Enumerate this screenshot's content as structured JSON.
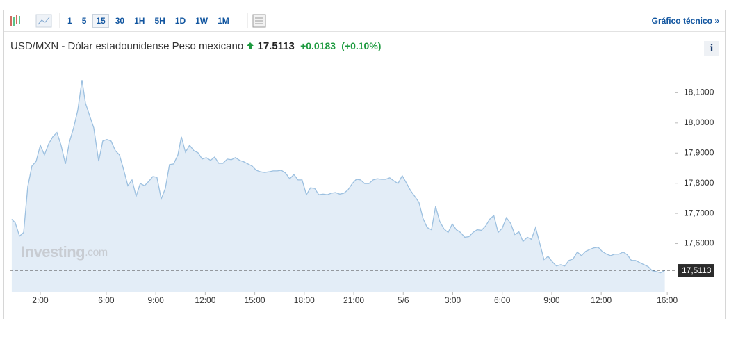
{
  "toolbar": {
    "intervals": [
      "1",
      "5",
      "15",
      "30",
      "1H",
      "5H",
      "1D",
      "1W",
      "1M"
    ],
    "active_index": 2,
    "technical_link": "Gráfico técnico »"
  },
  "header": {
    "title": "USD/MXN - Dólar estadounidense Peso mexicano",
    "price": "17.5113",
    "change": "+0.0183",
    "change_pct": "(+0.10%)",
    "info": "i"
  },
  "watermark": {
    "brand": "Investing",
    "suffix": ".com"
  },
  "chart_data": {
    "type": "area",
    "color": "#9cc0e0",
    "fill": "#e3edf7",
    "x": [
      0.27,
      0.48,
      0.74,
      0.99,
      1.24,
      1.49,
      1.75,
      2.0,
      2.25,
      2.51,
      2.76,
      3.01,
      3.26,
      3.52,
      3.77,
      4.02,
      4.27,
      4.53,
      4.74,
      4.99,
      5.24,
      5.54,
      5.79,
      6.04,
      6.29,
      6.55,
      6.8,
      7.05,
      7.31,
      7.56,
      7.81,
      8.06,
      8.32,
      8.57,
      8.82,
      9.07,
      9.33,
      9.58,
      9.83,
      10.08,
      10.34,
      10.55,
      10.8,
      11.05,
      11.31,
      11.56,
      11.81,
      12.06,
      12.32,
      12.57,
      12.82,
      13.07,
      13.33,
      13.58,
      13.83,
      14.08,
      14.34,
      14.59,
      14.84,
      15.09,
      15.35,
      15.6,
      15.85,
      16.11,
      16.36,
      16.61,
      16.86,
      17.12,
      17.37,
      17.62,
      17.87,
      18.13,
      18.38,
      18.63,
      18.88,
      19.14,
      19.39,
      19.64,
      19.89,
      20.15,
      20.4,
      20.65,
      20.91,
      21.16,
      21.41,
      21.66,
      21.92,
      22.17,
      22.42,
      22.67,
      22.93,
      23.18,
      23.43,
      23.68,
      23.94,
      24.19,
      24.44,
      24.69,
      24.95,
      25.2,
      25.45,
      25.71,
      25.96,
      26.21,
      26.46,
      26.72,
      26.97,
      27.22,
      27.47,
      27.73,
      27.98,
      28.23,
      28.48,
      28.74,
      28.99,
      29.24,
      29.49,
      29.75,
      30.0,
      30.25,
      30.51,
      30.76,
      31.01,
      31.26,
      31.52,
      31.77,
      32.02,
      32.27,
      32.53,
      32.78,
      33.03,
      33.28,
      33.54,
      33.79,
      34.04,
      34.29,
      34.55,
      34.8,
      35.05,
      35.31,
      35.56,
      35.81,
      36.06,
      36.32,
      36.57,
      36.82,
      37.07,
      37.33,
      37.58,
      37.83,
      38.08,
      38.34,
      38.59,
      38.84,
      39.09,
      39.35,
      39.6,
      39.85
    ],
    "values": [
      17.681,
      17.669,
      17.625,
      17.637,
      17.788,
      17.857,
      17.873,
      17.926,
      17.894,
      17.931,
      17.954,
      17.968,
      17.926,
      17.864,
      17.938,
      17.984,
      18.042,
      18.142,
      18.065,
      18.024,
      17.984,
      17.873,
      17.94,
      17.945,
      17.94,
      17.908,
      17.894,
      17.845,
      17.792,
      17.811,
      17.757,
      17.799,
      17.792,
      17.806,
      17.822,
      17.82,
      17.748,
      17.783,
      17.862,
      17.864,
      17.894,
      17.954,
      17.903,
      17.926,
      17.908,
      17.901,
      17.88,
      17.885,
      17.876,
      17.887,
      17.866,
      17.866,
      17.88,
      17.878,
      17.885,
      17.876,
      17.871,
      17.864,
      17.857,
      17.843,
      17.838,
      17.836,
      17.838,
      17.841,
      17.841,
      17.843,
      17.834,
      17.815,
      17.829,
      17.811,
      17.811,
      17.762,
      17.785,
      17.783,
      17.762,
      17.764,
      17.762,
      17.767,
      17.769,
      17.764,
      17.767,
      17.778,
      17.799,
      17.813,
      17.811,
      17.799,
      17.799,
      17.811,
      17.815,
      17.813,
      17.813,
      17.818,
      17.808,
      17.799,
      17.825,
      17.801,
      17.776,
      17.757,
      17.737,
      17.683,
      17.653,
      17.646,
      17.723,
      17.674,
      17.649,
      17.637,
      17.665,
      17.646,
      17.637,
      17.621,
      17.623,
      17.637,
      17.646,
      17.644,
      17.658,
      17.681,
      17.693,
      17.637,
      17.651,
      17.686,
      17.667,
      17.63,
      17.639,
      17.607,
      17.621,
      17.614,
      17.653,
      17.602,
      17.547,
      17.558,
      17.54,
      17.526,
      17.53,
      17.526,
      17.544,
      17.549,
      17.572,
      17.56,
      17.574,
      17.581,
      17.586,
      17.588,
      17.574,
      17.565,
      17.56,
      17.565,
      17.565,
      17.572,
      17.563,
      17.544,
      17.544,
      17.537,
      17.53,
      17.524,
      17.51,
      17.507,
      17.503,
      17.511
    ],
    "xlim": [
      0.19,
      40.5
    ],
    "xticks": [
      {
        "value": 2,
        "label": "2:00"
      },
      {
        "value": 6,
        "label": "6:00"
      },
      {
        "value": 9,
        "label": "9:00"
      },
      {
        "value": 12,
        "label": "12:00"
      },
      {
        "value": 15,
        "label": "15:00"
      },
      {
        "value": 18,
        "label": "18:00"
      },
      {
        "value": 21,
        "label": "21:00"
      },
      {
        "value": 24,
        "label": "5/6"
      },
      {
        "value": 27,
        "label": "3:00"
      },
      {
        "value": 30,
        "label": "6:00"
      },
      {
        "value": 33,
        "label": "9:00"
      },
      {
        "value": 36,
        "label": "12:00"
      },
      {
        "value": 40,
        "label": "16:00"
      }
    ],
    "ylim": [
      17.44,
      18.2
    ],
    "yticks": [
      {
        "value": 17.6,
        "label": "17,6000"
      },
      {
        "value": 17.7,
        "label": "17,7000"
      },
      {
        "value": 17.8,
        "label": "17,8000"
      },
      {
        "value": 17.9,
        "label": "17,9000"
      },
      {
        "value": 18.0,
        "label": "18,0000"
      },
      {
        "value": 18.1,
        "label": "18,1000"
      }
    ],
    "last_value": {
      "value": 17.5113,
      "label": "17,5113"
    }
  }
}
